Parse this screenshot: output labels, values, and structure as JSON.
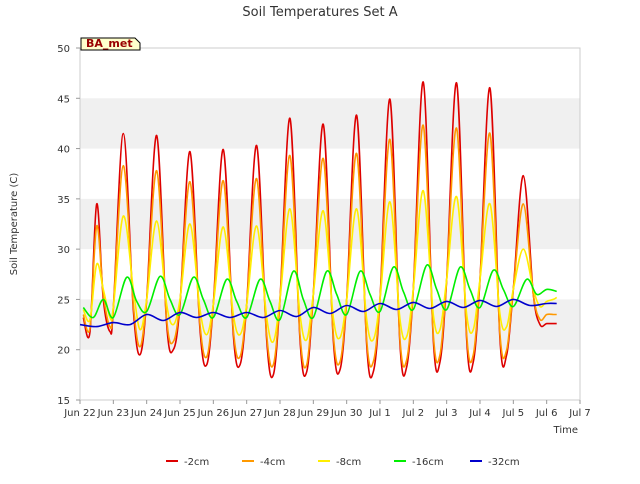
{
  "chart_data": {
    "type": "line",
    "title": "Soil Temperatures Set A",
    "xlabel": "Time",
    "ylabel": "Soil Temperature (C)",
    "station_tag": "BA_met",
    "xlim": [
      0,
      15
    ],
    "ylim": [
      15,
      50
    ],
    "x_ticks": [
      {
        "x": 0,
        "label": "Jun 22"
      },
      {
        "x": 1,
        "label": "Jun 23"
      },
      {
        "x": 2,
        "label": "Jun 24"
      },
      {
        "x": 3,
        "label": "Jun 25"
      },
      {
        "x": 4,
        "label": "Jun 26"
      },
      {
        "x": 5,
        "label": "Jun 27"
      },
      {
        "x": 6,
        "label": "Jun 28"
      },
      {
        "x": 7,
        "label": "Jun 29"
      },
      {
        "x": 8,
        "label": "Jun 30"
      },
      {
        "x": 9,
        "label": "Jul 1"
      },
      {
        "x": 10,
        "label": "Jul 2"
      },
      {
        "x": 11,
        "label": "Jul 3"
      },
      {
        "x": 12,
        "label": "Jul 4"
      },
      {
        "x": 13,
        "label": "Jul 5"
      },
      {
        "x": 14,
        "label": "Jul 6"
      },
      {
        "x": 15,
        "label": "Jul 7"
      }
    ],
    "y_ticks": [
      15,
      20,
      25,
      30,
      35,
      40,
      45,
      50
    ],
    "grid": false,
    "band_shading": true,
    "legend_position": "bottom",
    "series": [
      {
        "name": "-2cm",
        "color": "#dd0000",
        "x": [
          0.1,
          0.3,
          0.5,
          0.7,
          0.9,
          1.0,
          1.3,
          1.6,
          1.8,
          2.0,
          2.3,
          2.6,
          2.8,
          3.0,
          3.3,
          3.6,
          3.8,
          4.0,
          4.3,
          4.6,
          4.8,
          5.0,
          5.3,
          5.6,
          5.8,
          6.0,
          6.3,
          6.6,
          6.8,
          7.0,
          7.3,
          7.6,
          7.8,
          8.0,
          8.3,
          8.6,
          8.8,
          9.0,
          9.3,
          9.6,
          9.8,
          10.0,
          10.3,
          10.6,
          10.8,
          11.0,
          11.3,
          11.6,
          11.8,
          12.0,
          12.3,
          12.6,
          12.8,
          13.0,
          13.3,
          13.6,
          13.8,
          14.0,
          14.2,
          14.3
        ],
        "values": [
          23.2,
          21.8,
          34.5,
          25.0,
          21.8,
          24.0,
          41.5,
          24.0,
          19.5,
          25.0,
          41.3,
          22.5,
          20.0,
          24.5,
          39.7,
          22.0,
          18.5,
          24.5,
          39.9,
          21.5,
          18.5,
          24.5,
          40.3,
          21.0,
          17.5,
          25.0,
          43.0,
          21.0,
          17.8,
          25.5,
          42.4,
          21.0,
          18.0,
          25.0,
          43.3,
          20.5,
          17.8,
          25.0,
          44.9,
          20.5,
          18.3,
          26.0,
          46.6,
          21.0,
          18.8,
          27.0,
          46.5,
          21.0,
          18.8,
          27.0,
          46.0,
          21.0,
          19.5,
          26.0,
          37.3,
          25.5,
          22.5,
          22.6,
          22.6,
          22.6
        ]
      },
      {
        "name": "-4cm",
        "color": "#ff9900",
        "x": [
          0.1,
          0.3,
          0.5,
          0.7,
          0.9,
          1.0,
          1.3,
          1.6,
          1.8,
          2.0,
          2.3,
          2.6,
          2.8,
          3.0,
          3.3,
          3.6,
          3.8,
          4.0,
          4.3,
          4.6,
          4.8,
          5.0,
          5.3,
          5.6,
          5.8,
          6.0,
          6.3,
          6.6,
          6.8,
          7.0,
          7.3,
          7.6,
          7.8,
          8.0,
          8.3,
          8.6,
          8.8,
          9.0,
          9.3,
          9.6,
          9.8,
          10.0,
          10.3,
          10.6,
          10.8,
          11.0,
          11.3,
          11.6,
          11.8,
          12.0,
          12.3,
          12.6,
          12.8,
          13.0,
          13.3,
          13.6,
          13.8,
          14.0,
          14.2,
          14.3
        ],
        "values": [
          23.5,
          22.2,
          32.3,
          25.5,
          22.3,
          24.2,
          38.3,
          24.5,
          20.3,
          25.0,
          37.8,
          23.0,
          20.8,
          24.8,
          36.7,
          22.5,
          19.3,
          24.5,
          36.8,
          22.0,
          19.3,
          24.5,
          37.0,
          21.5,
          18.5,
          25.0,
          39.3,
          21.5,
          18.5,
          25.5,
          39.0,
          21.5,
          18.8,
          25.0,
          39.5,
          21.0,
          18.8,
          25.0,
          40.9,
          21.0,
          19.0,
          26.0,
          42.3,
          21.5,
          19.5,
          27.0,
          42.0,
          21.5,
          19.5,
          27.0,
          41.5,
          21.5,
          20.0,
          26.0,
          34.5,
          25.5,
          23.0,
          23.5,
          23.5,
          23.5
        ]
      },
      {
        "name": "-8cm",
        "color": "#ffee00",
        "x": [
          0.1,
          0.3,
          0.5,
          0.7,
          0.9,
          1.0,
          1.3,
          1.6,
          1.8,
          2.0,
          2.3,
          2.6,
          2.8,
          3.0,
          3.3,
          3.6,
          3.8,
          4.0,
          4.3,
          4.6,
          4.8,
          5.0,
          5.3,
          5.6,
          5.8,
          6.0,
          6.3,
          6.6,
          6.8,
          7.0,
          7.3,
          7.6,
          7.8,
          8.0,
          8.3,
          8.6,
          8.8,
          9.0,
          9.3,
          9.6,
          9.8,
          10.0,
          10.3,
          10.6,
          10.8,
          11.0,
          11.3,
          11.6,
          11.8,
          12.0,
          12.3,
          12.6,
          12.8,
          13.0,
          13.3,
          13.6,
          13.8,
          14.0,
          14.2,
          14.3
        ],
        "values": [
          24.0,
          23.0,
          28.5,
          26.0,
          23.2,
          24.2,
          33.3,
          26.0,
          22.0,
          25.0,
          32.8,
          24.5,
          22.5,
          25.0,
          32.5,
          24.0,
          21.5,
          24.5,
          32.2,
          23.5,
          21.5,
          24.5,
          32.3,
          23.2,
          20.8,
          25.0,
          34.0,
          23.5,
          21.0,
          25.5,
          33.8,
          23.2,
          21.2,
          25.0,
          34.0,
          23.0,
          21.0,
          25.0,
          34.7,
          23.0,
          21.3,
          26.0,
          35.8,
          23.5,
          22.0,
          27.0,
          35.2,
          23.5,
          22.0,
          27.0,
          34.5,
          23.5,
          22.3,
          26.0,
          30.0,
          26.0,
          24.3,
          24.8,
          25.0,
          25.2
        ]
      },
      {
        "name": "-16cm",
        "color": "#00ee00",
        "x": [
          0.1,
          0.4,
          0.7,
          1.0,
          1.4,
          1.7,
          2.0,
          2.4,
          2.7,
          3.0,
          3.4,
          3.7,
          4.0,
          4.4,
          4.7,
          5.0,
          5.4,
          5.7,
          6.0,
          6.4,
          6.7,
          7.0,
          7.4,
          7.7,
          8.0,
          8.4,
          8.7,
          9.0,
          9.4,
          9.7,
          10.0,
          10.4,
          10.7,
          11.0,
          11.4,
          11.7,
          12.0,
          12.4,
          12.7,
          13.0,
          13.4,
          13.7,
          14.0,
          14.3
        ],
        "values": [
          24.2,
          23.2,
          25.0,
          23.2,
          27.2,
          24.8,
          23.8,
          27.3,
          25.0,
          23.5,
          27.2,
          25.0,
          23.2,
          27.0,
          24.8,
          23.2,
          27.0,
          24.8,
          23.0,
          27.8,
          25.0,
          23.2,
          27.8,
          25.5,
          23.5,
          27.8,
          25.5,
          23.8,
          28.2,
          25.8,
          24.0,
          28.4,
          26.0,
          24.0,
          28.2,
          26.0,
          24.2,
          27.9,
          26.0,
          24.3,
          27.0,
          25.5,
          26.0,
          25.8
        ]
      },
      {
        "name": "-32cm",
        "color": "#0000cc",
        "x": [
          0.0,
          0.5,
          1.0,
          1.5,
          2.0,
          2.5,
          3.0,
          3.5,
          4.0,
          4.5,
          5.0,
          5.5,
          6.0,
          6.5,
          7.0,
          7.5,
          8.0,
          8.5,
          9.0,
          9.5,
          10.0,
          10.5,
          11.0,
          11.5,
          12.0,
          12.5,
          13.0,
          13.5,
          14.0,
          14.3
        ],
        "values": [
          22.5,
          22.3,
          22.7,
          22.5,
          23.5,
          22.9,
          23.7,
          23.2,
          23.7,
          23.2,
          23.7,
          23.2,
          23.9,
          23.3,
          24.2,
          23.6,
          24.4,
          23.8,
          24.6,
          24.0,
          24.7,
          24.1,
          24.8,
          24.2,
          24.9,
          24.3,
          25.0,
          24.4,
          24.6,
          24.6
        ]
      }
    ]
  }
}
